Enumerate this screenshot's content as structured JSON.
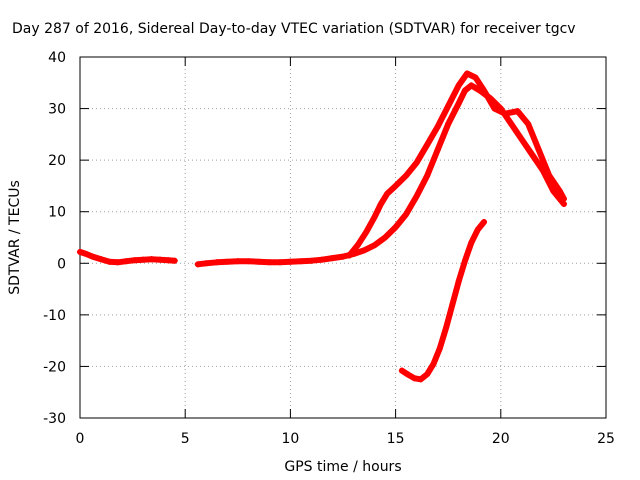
{
  "chart_data": {
    "type": "scatter",
    "title": "Day 287 of 2016, Sidereal Day-to-day VTEC variation (SDTVAR) for receiver tgcv",
    "xlabel": "GPS time / hours",
    "ylabel": "SDTVAR / TECUs",
    "xlim": [
      0,
      25
    ],
    "ylim": [
      -30,
      40
    ],
    "xticks": [
      0,
      5,
      10,
      15,
      20,
      25
    ],
    "yticks": [
      -30,
      -20,
      -10,
      0,
      10,
      20,
      30,
      40
    ],
    "grid": true,
    "marker_color": "#ff0000",
    "series": [
      {
        "name": "main",
        "points": [
          [
            0.0,
            2.2
          ],
          [
            0.3,
            1.8
          ],
          [
            0.6,
            1.3
          ],
          [
            1.0,
            0.8
          ],
          [
            1.4,
            0.3
          ],
          [
            1.8,
            0.2
          ],
          [
            2.2,
            0.4
          ],
          [
            2.6,
            0.6
          ],
          [
            3.0,
            0.7
          ],
          [
            3.4,
            0.8
          ],
          [
            3.8,
            0.7
          ],
          [
            4.2,
            0.6
          ],
          [
            4.5,
            0.5
          ],
          [
            5.6,
            -0.2
          ],
          [
            6.0,
            0.0
          ],
          [
            6.5,
            0.2
          ],
          [
            7.0,
            0.3
          ],
          [
            7.5,
            0.4
          ],
          [
            8.0,
            0.4
          ],
          [
            8.5,
            0.3
          ],
          [
            9.0,
            0.2
          ],
          [
            9.5,
            0.2
          ],
          [
            10.0,
            0.3
          ],
          [
            10.5,
            0.4
          ],
          [
            11.0,
            0.5
          ],
          [
            11.5,
            0.7
          ],
          [
            12.0,
            1.0
          ],
          [
            12.5,
            1.3
          ],
          [
            13.0,
            1.8
          ],
          [
            13.5,
            2.5
          ],
          [
            14.0,
            3.5
          ],
          [
            14.5,
            5.0
          ],
          [
            15.0,
            7.0
          ],
          [
            15.5,
            9.5
          ],
          [
            16.0,
            13.0
          ],
          [
            16.5,
            17.0
          ],
          [
            17.0,
            22.0
          ],
          [
            17.5,
            27.0
          ],
          [
            18.0,
            31.0
          ],
          [
            18.3,
            33.5
          ],
          [
            18.6,
            34.5
          ],
          [
            19.0,
            33.5
          ],
          [
            19.5,
            32.0
          ],
          [
            20.0,
            30.0
          ],
          [
            20.5,
            27.0
          ],
          [
            21.0,
            24.0
          ],
          [
            21.5,
            21.0
          ],
          [
            22.0,
            18.0
          ],
          [
            22.5,
            14.0
          ],
          [
            23.0,
            11.5
          ]
        ]
      },
      {
        "name": "upper-branch",
        "points": [
          [
            12.8,
            1.5
          ],
          [
            13.2,
            3.5
          ],
          [
            13.6,
            6.0
          ],
          [
            14.0,
            9.0
          ],
          [
            14.3,
            11.5
          ],
          [
            14.6,
            13.5
          ],
          [
            15.0,
            15.0
          ],
          [
            15.5,
            17.0
          ],
          [
            16.0,
            19.5
          ],
          [
            16.5,
            23.0
          ],
          [
            17.0,
            26.5
          ],
          [
            17.5,
            30.5
          ],
          [
            18.0,
            34.5
          ],
          [
            18.4,
            36.8
          ],
          [
            18.8,
            36.0
          ],
          [
            19.2,
            33.5
          ],
          [
            19.7,
            30.0
          ],
          [
            20.2,
            29.0
          ],
          [
            20.8,
            29.5
          ],
          [
            21.3,
            27.0
          ],
          [
            21.8,
            22.0
          ],
          [
            22.3,
            17.0
          ],
          [
            22.8,
            14.0
          ],
          [
            23.0,
            12.5
          ]
        ]
      },
      {
        "name": "lower-curve",
        "points": [
          [
            15.3,
            -20.8
          ],
          [
            15.6,
            -21.6
          ],
          [
            15.9,
            -22.3
          ],
          [
            16.2,
            -22.5
          ],
          [
            16.5,
            -21.5
          ],
          [
            16.8,
            -19.5
          ],
          [
            17.1,
            -16.5
          ],
          [
            17.4,
            -12.5
          ],
          [
            17.7,
            -8.0
          ],
          [
            18.0,
            -3.5
          ],
          [
            18.3,
            0.5
          ],
          [
            18.6,
            4.0
          ],
          [
            18.9,
            6.5
          ],
          [
            19.2,
            8.0
          ]
        ]
      }
    ]
  }
}
